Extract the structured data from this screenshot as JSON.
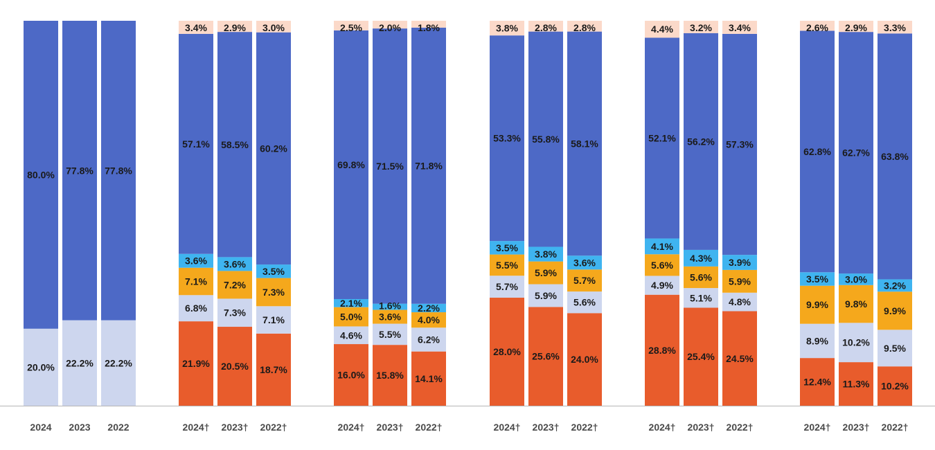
{
  "chart_data": {
    "type": "bar",
    "stacked": true,
    "normalized": true,
    "ylim": [
      0,
      100
    ],
    "title": "",
    "xlabel": "",
    "ylabel": "",
    "grid": false,
    "colors": {
      "s1": "#e85c2c",
      "s2": "#cdd6ee",
      "s3": "#f5a81c",
      "s4": "#3fb4f0",
      "s5": "#4d69c6",
      "s6": "#fbd9c9"
    },
    "groups": [
      {
        "bars": [
          {
            "label": "2024",
            "segments": [
              {
                "key": "s2",
                "value": 20.0,
                "label": "20.0%"
              },
              {
                "key": "s5",
                "value": 80.0,
                "label": "80.0%"
              }
            ]
          },
          {
            "label": "2023",
            "segments": [
              {
                "key": "s2",
                "value": 22.2,
                "label": "22.2%"
              },
              {
                "key": "s5",
                "value": 77.8,
                "label": "77.8%"
              }
            ]
          },
          {
            "label": "2022",
            "segments": [
              {
                "key": "s2",
                "value": 22.2,
                "label": "22.2%"
              },
              {
                "key": "s5",
                "value": 77.8,
                "label": "77.8%"
              }
            ]
          }
        ]
      },
      {
        "bars": [
          {
            "label": "2024†",
            "segments": [
              {
                "key": "s1",
                "value": 21.9,
                "label": "21.9%"
              },
              {
                "key": "s2",
                "value": 6.8,
                "label": "6.8%"
              },
              {
                "key": "s3",
                "value": 7.1,
                "label": "7.1%"
              },
              {
                "key": "s4",
                "value": 3.6,
                "label": "3.6%"
              },
              {
                "key": "s5",
                "value": 57.1,
                "label": "57.1%"
              },
              {
                "key": "s6",
                "value": 3.4,
                "label": "3.4%"
              }
            ]
          },
          {
            "label": "2023†",
            "segments": [
              {
                "key": "s1",
                "value": 20.5,
                "label": "20.5%"
              },
              {
                "key": "s2",
                "value": 7.3,
                "label": "7.3%"
              },
              {
                "key": "s3",
                "value": 7.2,
                "label": "7.2%"
              },
              {
                "key": "s4",
                "value": 3.6,
                "label": "3.6%"
              },
              {
                "key": "s5",
                "value": 58.5,
                "label": "58.5%"
              },
              {
                "key": "s6",
                "value": 2.9,
                "label": "2.9%"
              }
            ]
          },
          {
            "label": "2022†",
            "segments": [
              {
                "key": "s1",
                "value": 18.7,
                "label": "18.7%"
              },
              {
                "key": "s2",
                "value": 7.1,
                "label": "7.1%"
              },
              {
                "key": "s3",
                "value": 7.3,
                "label": "7.3%"
              },
              {
                "key": "s4",
                "value": 3.5,
                "label": "3.5%"
              },
              {
                "key": "s5",
                "value": 60.2,
                "label": "60.2%"
              },
              {
                "key": "s6",
                "value": 3.0,
                "label": "3.0%"
              }
            ]
          }
        ]
      },
      {
        "bars": [
          {
            "label": "2024†",
            "segments": [
              {
                "key": "s1",
                "value": 16.0,
                "label": "16.0%"
              },
              {
                "key": "s2",
                "value": 4.6,
                "label": "4.6%"
              },
              {
                "key": "s3",
                "value": 5.0,
                "label": "5.0%"
              },
              {
                "key": "s4",
                "value": 2.1,
                "label": "2.1%"
              },
              {
                "key": "s5",
                "value": 69.8,
                "label": "69.8%"
              },
              {
                "key": "s6",
                "value": 2.5,
                "label": "2.5%"
              }
            ]
          },
          {
            "label": "2023†",
            "segments": [
              {
                "key": "s1",
                "value": 15.8,
                "label": "15.8%"
              },
              {
                "key": "s2",
                "value": 5.5,
                "label": "5.5%"
              },
              {
                "key": "s3",
                "value": 3.6,
                "label": "3.6%"
              },
              {
                "key": "s4",
                "value": 1.6,
                "label": "1.6%"
              },
              {
                "key": "s5",
                "value": 71.5,
                "label": "71.5%"
              },
              {
                "key": "s6",
                "value": 2.0,
                "label": "2.0%"
              }
            ]
          },
          {
            "label": "2022†",
            "segments": [
              {
                "key": "s1",
                "value": 14.1,
                "label": "14.1%"
              },
              {
                "key": "s2",
                "value": 6.2,
                "label": "6.2%"
              },
              {
                "key": "s3",
                "value": 4.0,
                "label": "4.0%"
              },
              {
                "key": "s4",
                "value": 2.2,
                "label": "2.2%"
              },
              {
                "key": "s5",
                "value": 71.8,
                "label": "71.8%"
              },
              {
                "key": "s6",
                "value": 1.8,
                "label": "1.8%"
              }
            ]
          }
        ]
      },
      {
        "bars": [
          {
            "label": "2024†",
            "segments": [
              {
                "key": "s1",
                "value": 28.0,
                "label": "28.0%"
              },
              {
                "key": "s2",
                "value": 5.7,
                "label": "5.7%"
              },
              {
                "key": "s3",
                "value": 5.5,
                "label": "5.5%"
              },
              {
                "key": "s4",
                "value": 3.5,
                "label": "3.5%"
              },
              {
                "key": "s5",
                "value": 53.3,
                "label": "53.3%"
              },
              {
                "key": "s6",
                "value": 3.8,
                "label": "3.8%"
              }
            ]
          },
          {
            "label": "2023†",
            "segments": [
              {
                "key": "s1",
                "value": 25.6,
                "label": "25.6%"
              },
              {
                "key": "s2",
                "value": 5.9,
                "label": "5.9%"
              },
              {
                "key": "s3",
                "value": 5.9,
                "label": "5.9%"
              },
              {
                "key": "s4",
                "value": 3.8,
                "label": "3.8%"
              },
              {
                "key": "s5",
                "value": 55.8,
                "label": "55.8%"
              },
              {
                "key": "s6",
                "value": 2.8,
                "label": "2.8%"
              }
            ]
          },
          {
            "label": "2022†",
            "segments": [
              {
                "key": "s1",
                "value": 24.0,
                "label": "24.0%"
              },
              {
                "key": "s2",
                "value": 5.6,
                "label": "5.6%"
              },
              {
                "key": "s3",
                "value": 5.7,
                "label": "5.7%"
              },
              {
                "key": "s4",
                "value": 3.6,
                "label": "3.6%"
              },
              {
                "key": "s5",
                "value": 58.1,
                "label": "58.1%"
              },
              {
                "key": "s6",
                "value": 2.8,
                "label": "2.8%"
              }
            ]
          }
        ]
      },
      {
        "bars": [
          {
            "label": "2024†",
            "segments": [
              {
                "key": "s1",
                "value": 28.8,
                "label": "28.8%"
              },
              {
                "key": "s2",
                "value": 4.9,
                "label": "4.9%"
              },
              {
                "key": "s3",
                "value": 5.6,
                "label": "5.6%"
              },
              {
                "key": "s4",
                "value": 4.1,
                "label": "4.1%"
              },
              {
                "key": "s5",
                "value": 52.1,
                "label": "52.1%"
              },
              {
                "key": "s6",
                "value": 4.4,
                "label": "4.4%"
              }
            ]
          },
          {
            "label": "2023†",
            "segments": [
              {
                "key": "s1",
                "value": 25.4,
                "label": "25.4%"
              },
              {
                "key": "s2",
                "value": 5.1,
                "label": "5.1%"
              },
              {
                "key": "s3",
                "value": 5.6,
                "label": "5.6%"
              },
              {
                "key": "s4",
                "value": 4.3,
                "label": "4.3%"
              },
              {
                "key": "s5",
                "value": 56.2,
                "label": "56.2%"
              },
              {
                "key": "s6",
                "value": 3.2,
                "label": "3.2%"
              }
            ]
          },
          {
            "label": "2022†",
            "segments": [
              {
                "key": "s1",
                "value": 24.5,
                "label": "24.5%"
              },
              {
                "key": "s2",
                "value": 4.8,
                "label": "4.8%"
              },
              {
                "key": "s3",
                "value": 5.9,
                "label": "5.9%"
              },
              {
                "key": "s4",
                "value": 3.9,
                "label": "3.9%"
              },
              {
                "key": "s5",
                "value": 57.3,
                "label": "57.3%"
              },
              {
                "key": "s6",
                "value": 3.4,
                "label": "3.4%"
              }
            ]
          }
        ]
      },
      {
        "bars": [
          {
            "label": "2024†",
            "segments": [
              {
                "key": "s1",
                "value": 12.4,
                "label": "12.4%"
              },
              {
                "key": "s2",
                "value": 8.9,
                "label": "8.9%"
              },
              {
                "key": "s3",
                "value": 9.9,
                "label": "9.9%"
              },
              {
                "key": "s4",
                "value": 3.5,
                "label": "3.5%"
              },
              {
                "key": "s5",
                "value": 62.8,
                "label": "62.8%"
              },
              {
                "key": "s6",
                "value": 2.6,
                "label": "2.6%"
              }
            ]
          },
          {
            "label": "2023†",
            "segments": [
              {
                "key": "s1",
                "value": 11.3,
                "label": "11.3%"
              },
              {
                "key": "s2",
                "value": 10.2,
                "label": "10.2%"
              },
              {
                "key": "s3",
                "value": 9.8,
                "label": "9.8%"
              },
              {
                "key": "s4",
                "value": 3.0,
                "label": "3.0%"
              },
              {
                "key": "s5",
                "value": 62.7,
                "label": "62.7%"
              },
              {
                "key": "s6",
                "value": 2.9,
                "label": "2.9%"
              }
            ]
          },
          {
            "label": "2022†",
            "segments": [
              {
                "key": "s1",
                "value": 10.2,
                "label": "10.2%"
              },
              {
                "key": "s2",
                "value": 9.5,
                "label": "9.5%"
              },
              {
                "key": "s3",
                "value": 9.9,
                "label": "9.9%"
              },
              {
                "key": "s4",
                "value": 3.2,
                "label": "3.2%"
              },
              {
                "key": "s5",
                "value": 63.8,
                "label": "63.8%"
              },
              {
                "key": "s6",
                "value": 3.3,
                "label": "3.3%"
              }
            ]
          }
        ]
      }
    ]
  }
}
